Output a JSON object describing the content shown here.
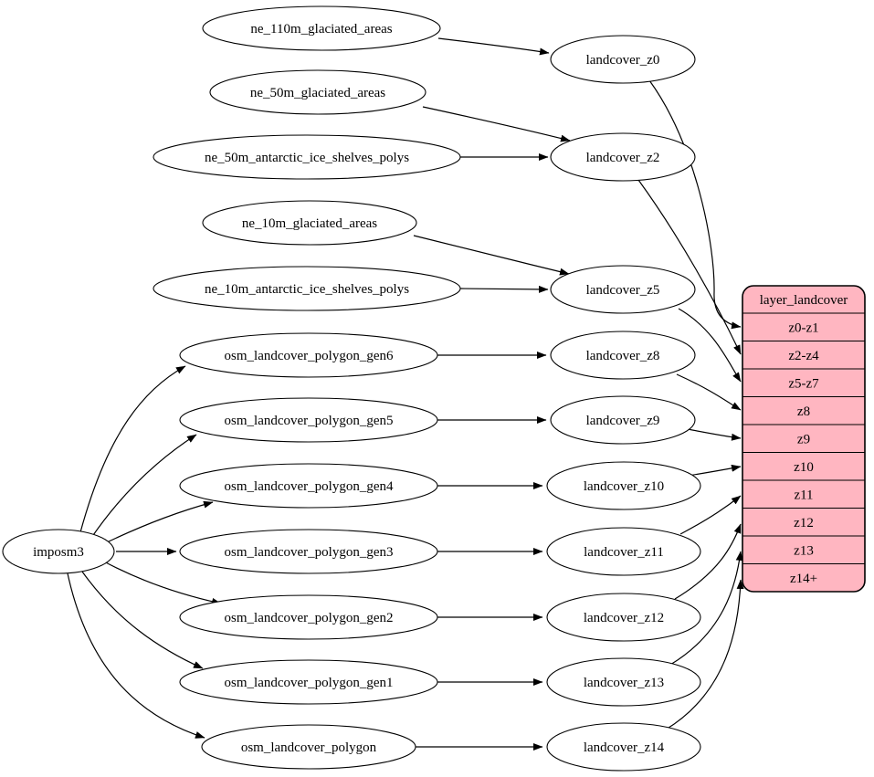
{
  "diagram": {
    "kind": "dependency-graph",
    "background_color": "#ffffff",
    "edge_color": "#000000",
    "node_fill": "#ffffff",
    "node_stroke": "#000000",
    "nodes": [
      {
        "id": "imposm3",
        "label": "imposm3"
      },
      {
        "id": "ne_110m_glaciated_areas",
        "label": "ne_110m_glaciated_areas"
      },
      {
        "id": "ne_50m_glaciated_areas",
        "label": "ne_50m_glaciated_areas"
      },
      {
        "id": "ne_50m_antarctic_ice_shelves_polys",
        "label": "ne_50m_antarctic_ice_shelves_polys"
      },
      {
        "id": "ne_10m_glaciated_areas",
        "label": "ne_10m_glaciated_areas"
      },
      {
        "id": "ne_10m_antarctic_ice_shelves_polys",
        "label": "ne_10m_antarctic_ice_shelves_polys"
      },
      {
        "id": "osm_landcover_polygon_gen6",
        "label": "osm_landcover_polygon_gen6"
      },
      {
        "id": "osm_landcover_polygon_gen5",
        "label": "osm_landcover_polygon_gen5"
      },
      {
        "id": "osm_landcover_polygon_gen4",
        "label": "osm_landcover_polygon_gen4"
      },
      {
        "id": "osm_landcover_polygon_gen3",
        "label": "osm_landcover_polygon_gen3"
      },
      {
        "id": "osm_landcover_polygon_gen2",
        "label": "osm_landcover_polygon_gen2"
      },
      {
        "id": "osm_landcover_polygon_gen1",
        "label": "osm_landcover_polygon_gen1"
      },
      {
        "id": "osm_landcover_polygon",
        "label": "osm_landcover_polygon"
      },
      {
        "id": "landcover_z0",
        "label": "landcover_z0"
      },
      {
        "id": "landcover_z2",
        "label": "landcover_z2"
      },
      {
        "id": "landcover_z5",
        "label": "landcover_z5"
      },
      {
        "id": "landcover_z8",
        "label": "landcover_z8"
      },
      {
        "id": "landcover_z9",
        "label": "landcover_z9"
      },
      {
        "id": "landcover_z10",
        "label": "landcover_z10"
      },
      {
        "id": "landcover_z11",
        "label": "landcover_z11"
      },
      {
        "id": "landcover_z12",
        "label": "landcover_z12"
      },
      {
        "id": "landcover_z13",
        "label": "landcover_z13"
      },
      {
        "id": "landcover_z14",
        "label": "landcover_z14"
      }
    ],
    "record": {
      "id": "layer_landcover",
      "title": "layer_landcover",
      "fill": "#ffb6c1",
      "stroke": "#000000",
      "rows": [
        {
          "id": "z0-z1",
          "label": "z0-z1"
        },
        {
          "id": "z2-z4",
          "label": "z2-z4"
        },
        {
          "id": "z5-z7",
          "label": "z5-z7"
        },
        {
          "id": "z8",
          "label": "z8"
        },
        {
          "id": "z9",
          "label": "z9"
        },
        {
          "id": "z10",
          "label": "z10"
        },
        {
          "id": "z11",
          "label": "z11"
        },
        {
          "id": "z12",
          "label": "z12"
        },
        {
          "id": "z13",
          "label": "z13"
        },
        {
          "id": "z14+",
          "label": "z14+"
        }
      ]
    },
    "edges": [
      {
        "from": "ne_110m_glaciated_areas",
        "to": "landcover_z0"
      },
      {
        "from": "ne_50m_glaciated_areas",
        "to": "landcover_z2"
      },
      {
        "from": "ne_50m_antarctic_ice_shelves_polys",
        "to": "landcover_z2"
      },
      {
        "from": "ne_10m_glaciated_areas",
        "to": "landcover_z5"
      },
      {
        "from": "ne_10m_antarctic_ice_shelves_polys",
        "to": "landcover_z5"
      },
      {
        "from": "imposm3",
        "to": "osm_landcover_polygon_gen6"
      },
      {
        "from": "imposm3",
        "to": "osm_landcover_polygon_gen5"
      },
      {
        "from": "imposm3",
        "to": "osm_landcover_polygon_gen4"
      },
      {
        "from": "imposm3",
        "to": "osm_landcover_polygon_gen3"
      },
      {
        "from": "imposm3",
        "to": "osm_landcover_polygon_gen2"
      },
      {
        "from": "imposm3",
        "to": "osm_landcover_polygon_gen1"
      },
      {
        "from": "imposm3",
        "to": "osm_landcover_polygon"
      },
      {
        "from": "osm_landcover_polygon_gen6",
        "to": "landcover_z8"
      },
      {
        "from": "osm_landcover_polygon_gen5",
        "to": "landcover_z9"
      },
      {
        "from": "osm_landcover_polygon_gen4",
        "to": "landcover_z10"
      },
      {
        "from": "osm_landcover_polygon_gen3",
        "to": "landcover_z11"
      },
      {
        "from": "osm_landcover_polygon_gen2",
        "to": "landcover_z12"
      },
      {
        "from": "osm_landcover_polygon_gen1",
        "to": "landcover_z13"
      },
      {
        "from": "osm_landcover_polygon",
        "to": "landcover_z14"
      },
      {
        "from": "landcover_z0",
        "to": "layer_landcover:z0-z1"
      },
      {
        "from": "landcover_z2",
        "to": "layer_landcover:z2-z4"
      },
      {
        "from": "landcover_z5",
        "to": "layer_landcover:z5-z7"
      },
      {
        "from": "landcover_z8",
        "to": "layer_landcover:z8"
      },
      {
        "from": "landcover_z9",
        "to": "layer_landcover:z9"
      },
      {
        "from": "landcover_z10",
        "to": "layer_landcover:z10"
      },
      {
        "from": "landcover_z11",
        "to": "layer_landcover:z11"
      },
      {
        "from": "landcover_z12",
        "to": "layer_landcover:z12"
      },
      {
        "from": "landcover_z13",
        "to": "layer_landcover:z13"
      },
      {
        "from": "landcover_z14",
        "to": "layer_landcover:z14+"
      }
    ]
  }
}
